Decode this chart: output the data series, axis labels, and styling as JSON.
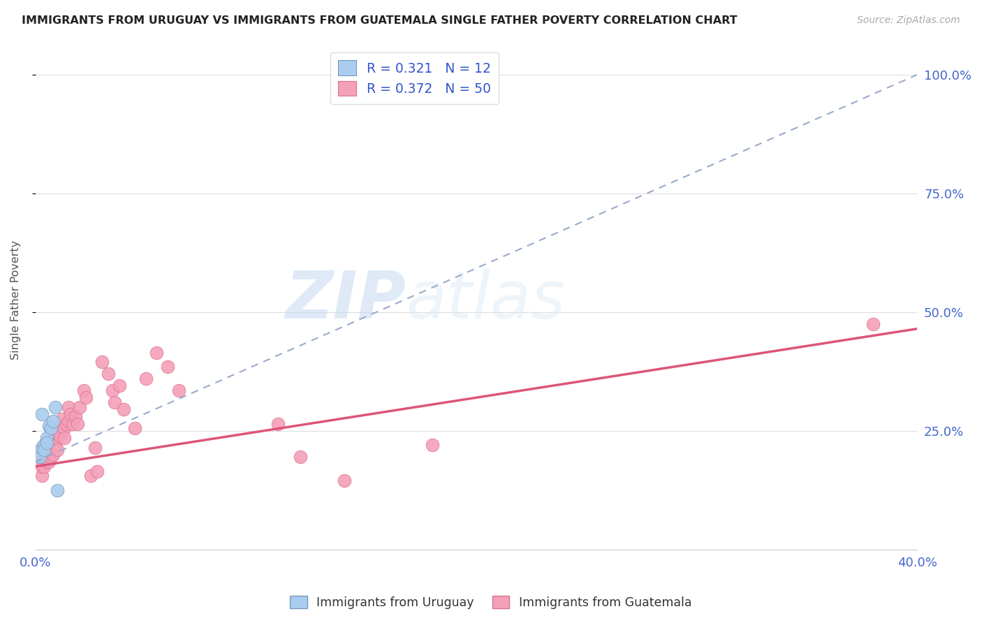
{
  "title": "IMMIGRANTS FROM URUGUAY VS IMMIGRANTS FROM GUATEMALA SINGLE FATHER POVERTY CORRELATION CHART",
  "source": "Source: ZipAtlas.com",
  "ylabel": "Single Father Poverty",
  "xlim": [
    0.0,
    0.4
  ],
  "ylim": [
    0.0,
    1.05
  ],
  "watermark_zip": "ZIP",
  "watermark_atlas": "atlas",
  "background_color": "#ffffff",
  "grid_color": "#dedede",
  "uruguay_color": "#aaccee",
  "guatemala_color": "#f4a0b8",
  "uruguay_edge_color": "#7799bb",
  "guatemala_edge_color": "#dd7090",
  "uruguay_trend_color": "#99aacc",
  "guatemala_trend_color": "#dd5577",
  "legend_r1": "R = 0.321",
  "legend_n1": "N = 12",
  "legend_r2": "R = 0.372",
  "legend_n2": "N = 50",
  "legend_color_r": "#3355cc",
  "legend_color_n": "#3355cc",
  "ytick_values": [
    0.25,
    0.5,
    0.75,
    1.0
  ],
  "ytick_labels": [
    "25.0%",
    "50.0%",
    "75.0%",
    "100.0%"
  ],
  "xtick_label_left": "0.0%",
  "xtick_label_right": "40.0%",
  "tick_color": "#4466cc",
  "uruguay_points": [
    [
      0.002,
      0.195
    ],
    [
      0.003,
      0.285
    ],
    [
      0.003,
      0.215
    ],
    [
      0.004,
      0.22
    ],
    [
      0.004,
      0.21
    ],
    [
      0.005,
      0.235
    ],
    [
      0.005,
      0.225
    ],
    [
      0.006,
      0.26
    ],
    [
      0.007,
      0.255
    ],
    [
      0.008,
      0.27
    ],
    [
      0.009,
      0.3
    ],
    [
      0.01,
      0.125
    ]
  ],
  "guatemala_points": [
    [
      0.002,
      0.195
    ],
    [
      0.003,
      0.155
    ],
    [
      0.003,
      0.175
    ],
    [
      0.004,
      0.195
    ],
    [
      0.004,
      0.175
    ],
    [
      0.005,
      0.205
    ],
    [
      0.005,
      0.185
    ],
    [
      0.006,
      0.21
    ],
    [
      0.006,
      0.185
    ],
    [
      0.007,
      0.215
    ],
    [
      0.007,
      0.195
    ],
    [
      0.008,
      0.225
    ],
    [
      0.008,
      0.2
    ],
    [
      0.009,
      0.235
    ],
    [
      0.009,
      0.22
    ],
    [
      0.01,
      0.245
    ],
    [
      0.01,
      0.21
    ],
    [
      0.011,
      0.24
    ],
    [
      0.012,
      0.275
    ],
    [
      0.013,
      0.255
    ],
    [
      0.013,
      0.235
    ],
    [
      0.014,
      0.265
    ],
    [
      0.015,
      0.3
    ],
    [
      0.015,
      0.27
    ],
    [
      0.016,
      0.285
    ],
    [
      0.017,
      0.265
    ],
    [
      0.018,
      0.28
    ],
    [
      0.019,
      0.265
    ],
    [
      0.02,
      0.3
    ],
    [
      0.022,
      0.335
    ],
    [
      0.023,
      0.32
    ],
    [
      0.025,
      0.155
    ],
    [
      0.027,
      0.215
    ],
    [
      0.028,
      0.165
    ],
    [
      0.03,
      0.395
    ],
    [
      0.033,
      0.37
    ],
    [
      0.035,
      0.335
    ],
    [
      0.036,
      0.31
    ],
    [
      0.038,
      0.345
    ],
    [
      0.04,
      0.295
    ],
    [
      0.045,
      0.255
    ],
    [
      0.05,
      0.36
    ],
    [
      0.055,
      0.415
    ],
    [
      0.06,
      0.385
    ],
    [
      0.065,
      0.335
    ],
    [
      0.11,
      0.265
    ],
    [
      0.12,
      0.195
    ],
    [
      0.14,
      0.145
    ],
    [
      0.18,
      0.22
    ],
    [
      0.38,
      0.475
    ]
  ],
  "uruguay_trend_x": [
    0.0,
    0.4
  ],
  "uruguay_trend_y": [
    0.185,
    1.0
  ],
  "guatemala_trend_x": [
    0.0,
    0.4
  ],
  "guatemala_trend_y": [
    0.175,
    0.465
  ]
}
